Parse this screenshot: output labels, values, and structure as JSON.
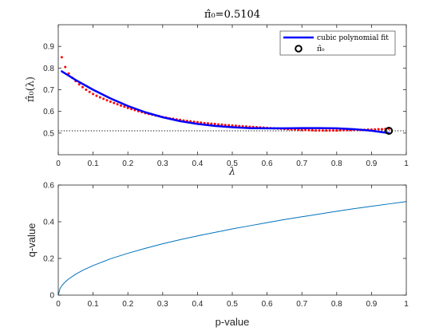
{
  "chart_data": [
    {
      "type": "scatter",
      "title": "π̂₀=0.5104",
      "xlabel": "λ",
      "ylabel": "π̂₀(λ)",
      "xlim": [
        0,
        1
      ],
      "ylim": [
        0.4,
        1.0
      ],
      "xticks": [
        "0",
        "0.1",
        "0.2",
        "0.3",
        "0.4",
        "0.5",
        "0.6",
        "0.7",
        "0.8",
        "0.9",
        "1"
      ],
      "yticks": [
        "0.5",
        "0.6",
        "0.7",
        "0.8",
        "0.9"
      ],
      "grid": false,
      "legend_position": "top-right",
      "series": [
        {
          "name": "π̂₀(λ)",
          "style": "dots",
          "color": "#ff0000",
          "x": [
            0.01,
            0.02,
            0.03,
            0.04,
            0.05,
            0.06,
            0.07,
            0.08,
            0.09,
            0.1,
            0.11,
            0.12,
            0.13,
            0.14,
            0.15,
            0.16,
            0.17,
            0.18,
            0.19,
            0.2,
            0.21,
            0.22,
            0.23,
            0.24,
            0.25,
            0.26,
            0.27,
            0.28,
            0.29,
            0.3,
            0.31,
            0.32,
            0.33,
            0.34,
            0.35,
            0.36,
            0.37,
            0.38,
            0.39,
            0.4,
            0.41,
            0.42,
            0.43,
            0.44,
            0.45,
            0.46,
            0.47,
            0.48,
            0.49,
            0.5,
            0.51,
            0.52,
            0.53,
            0.54,
            0.55,
            0.56,
            0.57,
            0.58,
            0.59,
            0.6,
            0.61,
            0.62,
            0.63,
            0.64,
            0.65,
            0.66,
            0.67,
            0.68,
            0.69,
            0.7,
            0.71,
            0.72,
            0.73,
            0.74,
            0.75,
            0.76,
            0.77,
            0.78,
            0.79,
            0.8,
            0.81,
            0.82,
            0.83,
            0.84,
            0.85,
            0.86,
            0.87,
            0.88,
            0.89,
            0.9,
            0.91,
            0.92,
            0.93,
            0.94,
            0.95
          ],
          "y": [
            0.85,
            0.805,
            0.775,
            0.755,
            0.74,
            0.725,
            0.712,
            0.7,
            0.69,
            0.68,
            0.672,
            0.665,
            0.658,
            0.651,
            0.645,
            0.639,
            0.633,
            0.627,
            0.622,
            0.616,
            0.611,
            0.606,
            0.601,
            0.597,
            0.592,
            0.588,
            0.585,
            0.581,
            0.578,
            0.574,
            0.571,
            0.568,
            0.566,
            0.563,
            0.561,
            0.558,
            0.556,
            0.554,
            0.552,
            0.55,
            0.548,
            0.546,
            0.545,
            0.543,
            0.542,
            0.54,
            0.539,
            0.537,
            0.536,
            0.535,
            0.534,
            0.532,
            0.531,
            0.53,
            0.529,
            0.528,
            0.527,
            0.526,
            0.525,
            0.524,
            0.523,
            0.522,
            0.521,
            0.52,
            0.519,
            0.518,
            0.517,
            0.516,
            0.515,
            0.514,
            0.514,
            0.513,
            0.513,
            0.512,
            0.512,
            0.512,
            0.512,
            0.512,
            0.512,
            0.512,
            0.513,
            0.513,
            0.513,
            0.514,
            0.514,
            0.514,
            0.515,
            0.515,
            0.516,
            0.516,
            0.517,
            0.518,
            0.518,
            0.519,
            0.52
          ]
        },
        {
          "name": "cubic polynomial fit",
          "style": "line",
          "color": "#0000ff",
          "x": [
            0.01,
            0.03,
            0.05,
            0.08,
            0.1,
            0.15,
            0.2,
            0.25,
            0.3,
            0.35,
            0.4,
            0.45,
            0.5,
            0.55,
            0.6,
            0.65,
            0.7,
            0.75,
            0.8,
            0.85,
            0.9,
            0.95
          ],
          "y": [
            0.785,
            0.765,
            0.745,
            0.718,
            0.7,
            0.66,
            0.625,
            0.596,
            0.573,
            0.555,
            0.542,
            0.533,
            0.527,
            0.523,
            0.522,
            0.522,
            0.523,
            0.523,
            0.522,
            0.518,
            0.511,
            0.5
          ]
        },
        {
          "name": "π̂₀",
          "style": "circle-marker",
          "color": "#000000",
          "x": [
            0.95
          ],
          "y": [
            0.5104
          ]
        }
      ],
      "reference_line": {
        "y": 0.5104,
        "style": "dotted",
        "color": "#000000"
      }
    },
    {
      "type": "line",
      "title": "",
      "xlabel": "p-value",
      "ylabel": "q-value",
      "xlim": [
        0,
        1
      ],
      "ylim": [
        0,
        0.6
      ],
      "xticks": [
        "0",
        "0.1",
        "0.2",
        "0.3",
        "0.4",
        "0.5",
        "0.6",
        "0.7",
        "0.8",
        "0.9",
        "1"
      ],
      "yticks": [
        "0",
        "0.2",
        "0.4",
        "0.6"
      ],
      "grid": false,
      "series": [
        {
          "color": "#0072bd",
          "x": [
            0,
            0.005,
            0.01,
            0.02,
            0.03,
            0.05,
            0.07,
            0.1,
            0.15,
            0.2,
            0.25,
            0.3,
            0.35,
            0.4,
            0.45,
            0.5,
            0.55,
            0.6,
            0.65,
            0.7,
            0.75,
            0.8,
            0.85,
            0.9,
            0.95,
            1.0
          ],
          "y": [
            0,
            0.036,
            0.051,
            0.072,
            0.088,
            0.114,
            0.135,
            0.161,
            0.198,
            0.228,
            0.255,
            0.28,
            0.302,
            0.323,
            0.342,
            0.361,
            0.378,
            0.395,
            0.412,
            0.427,
            0.442,
            0.457,
            0.471,
            0.484,
            0.497,
            0.51
          ]
        }
      ]
    }
  ]
}
